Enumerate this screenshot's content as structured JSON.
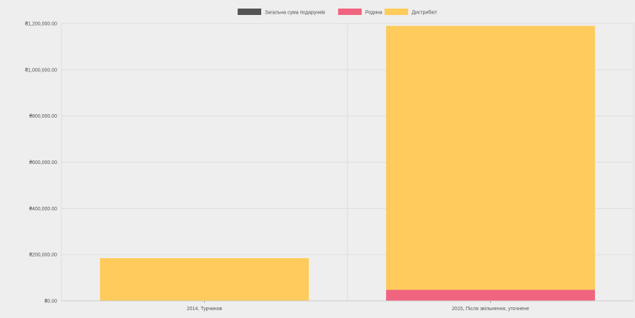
{
  "chart_data": {
    "type": "bar",
    "stacked": true,
    "categories": [
      "2014, Турчинов",
      "2015, Після звільнення, уточнене"
    ],
    "series": [
      {
        "name": "Загальна сума подарунків",
        "color": "#555555",
        "values": [
          0,
          0
        ]
      },
      {
        "name": "Родина",
        "color": "#f0647f",
        "values": [
          0,
          48000
        ]
      },
      {
        "name": "Дистрибют",
        "color": "#fecb5c",
        "values": [
          185000,
          1142000
        ]
      }
    ],
    "y_ticks": [
      "₴0.00",
      "₴200,000.00",
      "₴400,000.00",
      "₴600,000.00",
      "₴800,000.00",
      "₴1,000,000.00",
      "₴1,200,000.00"
    ],
    "ylim": [
      0,
      1200000
    ],
    "grid": true,
    "legend_position": "top-center"
  }
}
